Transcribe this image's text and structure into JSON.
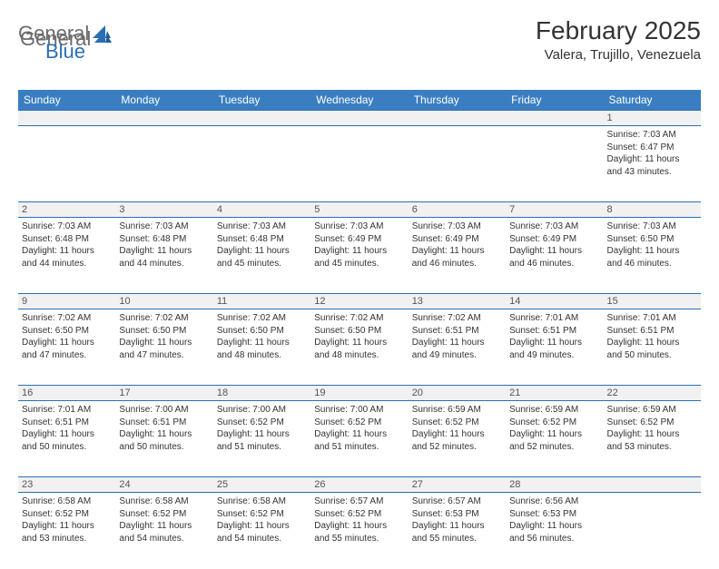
{
  "brand": {
    "part1": "General",
    "part2": "Blue"
  },
  "title": "February 2025",
  "location": "Valera, Trujillo, Venezuela",
  "weekdays": [
    "Sunday",
    "Monday",
    "Tuesday",
    "Wednesday",
    "Thursday",
    "Friday",
    "Saturday"
  ],
  "colors": {
    "header_bg": "#3a7ec1",
    "header_text": "#ffffff",
    "daynum_bg": "#f1f1f1",
    "border": "#2a6fb5",
    "text": "#333333",
    "logo_gray": "#6b6b6b",
    "logo_blue": "#2a6fb5"
  },
  "weeks": [
    {
      "nums": [
        "",
        "",
        "",
        "",
        "",
        "",
        "1"
      ],
      "cells": [
        null,
        null,
        null,
        null,
        null,
        null,
        {
          "sunrise": "Sunrise: 7:03 AM",
          "sunset": "Sunset: 6:47 PM",
          "daylight1": "Daylight: 11 hours",
          "daylight2": "and 43 minutes."
        }
      ]
    },
    {
      "nums": [
        "2",
        "3",
        "4",
        "5",
        "6",
        "7",
        "8"
      ],
      "cells": [
        {
          "sunrise": "Sunrise: 7:03 AM",
          "sunset": "Sunset: 6:48 PM",
          "daylight1": "Daylight: 11 hours",
          "daylight2": "and 44 minutes."
        },
        {
          "sunrise": "Sunrise: 7:03 AM",
          "sunset": "Sunset: 6:48 PM",
          "daylight1": "Daylight: 11 hours",
          "daylight2": "and 44 minutes."
        },
        {
          "sunrise": "Sunrise: 7:03 AM",
          "sunset": "Sunset: 6:48 PM",
          "daylight1": "Daylight: 11 hours",
          "daylight2": "and 45 minutes."
        },
        {
          "sunrise": "Sunrise: 7:03 AM",
          "sunset": "Sunset: 6:49 PM",
          "daylight1": "Daylight: 11 hours",
          "daylight2": "and 45 minutes."
        },
        {
          "sunrise": "Sunrise: 7:03 AM",
          "sunset": "Sunset: 6:49 PM",
          "daylight1": "Daylight: 11 hours",
          "daylight2": "and 46 minutes."
        },
        {
          "sunrise": "Sunrise: 7:03 AM",
          "sunset": "Sunset: 6:49 PM",
          "daylight1": "Daylight: 11 hours",
          "daylight2": "and 46 minutes."
        },
        {
          "sunrise": "Sunrise: 7:03 AM",
          "sunset": "Sunset: 6:50 PM",
          "daylight1": "Daylight: 11 hours",
          "daylight2": "and 46 minutes."
        }
      ]
    },
    {
      "nums": [
        "9",
        "10",
        "11",
        "12",
        "13",
        "14",
        "15"
      ],
      "cells": [
        {
          "sunrise": "Sunrise: 7:02 AM",
          "sunset": "Sunset: 6:50 PM",
          "daylight1": "Daylight: 11 hours",
          "daylight2": "and 47 minutes."
        },
        {
          "sunrise": "Sunrise: 7:02 AM",
          "sunset": "Sunset: 6:50 PM",
          "daylight1": "Daylight: 11 hours",
          "daylight2": "and 47 minutes."
        },
        {
          "sunrise": "Sunrise: 7:02 AM",
          "sunset": "Sunset: 6:50 PM",
          "daylight1": "Daylight: 11 hours",
          "daylight2": "and 48 minutes."
        },
        {
          "sunrise": "Sunrise: 7:02 AM",
          "sunset": "Sunset: 6:50 PM",
          "daylight1": "Daylight: 11 hours",
          "daylight2": "and 48 minutes."
        },
        {
          "sunrise": "Sunrise: 7:02 AM",
          "sunset": "Sunset: 6:51 PM",
          "daylight1": "Daylight: 11 hours",
          "daylight2": "and 49 minutes."
        },
        {
          "sunrise": "Sunrise: 7:01 AM",
          "sunset": "Sunset: 6:51 PM",
          "daylight1": "Daylight: 11 hours",
          "daylight2": "and 49 minutes."
        },
        {
          "sunrise": "Sunrise: 7:01 AM",
          "sunset": "Sunset: 6:51 PM",
          "daylight1": "Daylight: 11 hours",
          "daylight2": "and 50 minutes."
        }
      ]
    },
    {
      "nums": [
        "16",
        "17",
        "18",
        "19",
        "20",
        "21",
        "22"
      ],
      "cells": [
        {
          "sunrise": "Sunrise: 7:01 AM",
          "sunset": "Sunset: 6:51 PM",
          "daylight1": "Daylight: 11 hours",
          "daylight2": "and 50 minutes."
        },
        {
          "sunrise": "Sunrise: 7:00 AM",
          "sunset": "Sunset: 6:51 PM",
          "daylight1": "Daylight: 11 hours",
          "daylight2": "and 50 minutes."
        },
        {
          "sunrise": "Sunrise: 7:00 AM",
          "sunset": "Sunset: 6:52 PM",
          "daylight1": "Daylight: 11 hours",
          "daylight2": "and 51 minutes."
        },
        {
          "sunrise": "Sunrise: 7:00 AM",
          "sunset": "Sunset: 6:52 PM",
          "daylight1": "Daylight: 11 hours",
          "daylight2": "and 51 minutes."
        },
        {
          "sunrise": "Sunrise: 6:59 AM",
          "sunset": "Sunset: 6:52 PM",
          "daylight1": "Daylight: 11 hours",
          "daylight2": "and 52 minutes."
        },
        {
          "sunrise": "Sunrise: 6:59 AM",
          "sunset": "Sunset: 6:52 PM",
          "daylight1": "Daylight: 11 hours",
          "daylight2": "and 52 minutes."
        },
        {
          "sunrise": "Sunrise: 6:59 AM",
          "sunset": "Sunset: 6:52 PM",
          "daylight1": "Daylight: 11 hours",
          "daylight2": "and 53 minutes."
        }
      ]
    },
    {
      "nums": [
        "23",
        "24",
        "25",
        "26",
        "27",
        "28",
        ""
      ],
      "cells": [
        {
          "sunrise": "Sunrise: 6:58 AM",
          "sunset": "Sunset: 6:52 PM",
          "daylight1": "Daylight: 11 hours",
          "daylight2": "and 53 minutes."
        },
        {
          "sunrise": "Sunrise: 6:58 AM",
          "sunset": "Sunset: 6:52 PM",
          "daylight1": "Daylight: 11 hours",
          "daylight2": "and 54 minutes."
        },
        {
          "sunrise": "Sunrise: 6:58 AM",
          "sunset": "Sunset: 6:52 PM",
          "daylight1": "Daylight: 11 hours",
          "daylight2": "and 54 minutes."
        },
        {
          "sunrise": "Sunrise: 6:57 AM",
          "sunset": "Sunset: 6:52 PM",
          "daylight1": "Daylight: 11 hours",
          "daylight2": "and 55 minutes."
        },
        {
          "sunrise": "Sunrise: 6:57 AM",
          "sunset": "Sunset: 6:53 PM",
          "daylight1": "Daylight: 11 hours",
          "daylight2": "and 55 minutes."
        },
        {
          "sunrise": "Sunrise: 6:56 AM",
          "sunset": "Sunset: 6:53 PM",
          "daylight1": "Daylight: 11 hours",
          "daylight2": "and 56 minutes."
        },
        null
      ]
    }
  ]
}
